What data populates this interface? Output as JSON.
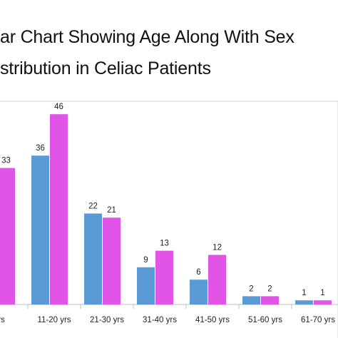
{
  "title_lines": [
    "ar Chart Showing Age Along With Sex",
    "stribution in Celiac Patients"
  ],
  "colors": {
    "series1": "#5b9bd5",
    "series2": "#e155e6",
    "axis": "#bfbfbf",
    "frame": "#d0d0d0"
  },
  "chart_data": {
    "type": "bar",
    "title": "ar Chart Showing Age Along With Sex stribution in Celiac Patients",
    "categories": [
      "rs",
      "11-20 yrs",
      "21-30 yrs",
      "31-40 yrs",
      "41-50 yrs",
      "51-60 yrs",
      "61-70 yrs"
    ],
    "series": [
      {
        "values": [
          null,
          36,
          22,
          9,
          6,
          2,
          1
        ]
      },
      {
        "values": [
          33,
          46,
          21,
          13,
          12,
          2,
          1
        ]
      }
    ],
    "ylim": [
      0,
      50
    ],
    "grid": false,
    "legend": "none"
  }
}
